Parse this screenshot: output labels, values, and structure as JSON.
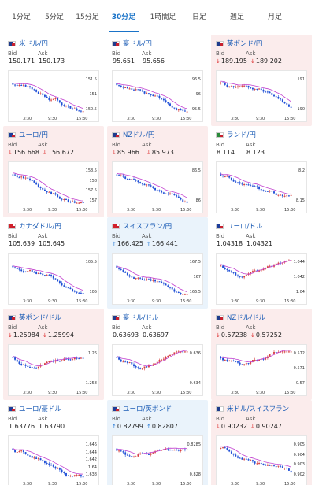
{
  "tabs": [
    {
      "label": "1分足"
    },
    {
      "label": "5分足"
    },
    {
      "label": "15分足"
    },
    {
      "label": "30分足",
      "active": true
    },
    {
      "label": "1時間足"
    },
    {
      "label": "日足"
    },
    {
      "label": "週足"
    },
    {
      "label": "月足"
    }
  ],
  "labels": {
    "bid": "Bid",
    "ask": "Ask"
  },
  "colors": {
    "down_bg": "#fbecec",
    "up_bg": "#eaf3fb",
    "link": "#1a5bb5",
    "bull": "#d64040",
    "bear": "#1f4fd6",
    "ma": "#c13fcf",
    "down_arrow": "#d33",
    "up_arrow": "#2a7bd8"
  },
  "cards": [
    {
      "pair": "米ドル/円",
      "flag": "us-jp-flag-icon",
      "state": "flat",
      "bid": "150.171",
      "ask": "150.173",
      "arrow": "",
      "yticks": [
        "151.5",
        "151",
        "150.5"
      ],
      "xticks": [
        "3:30",
        "9:30",
        "15:30"
      ],
      "trend": "down"
    },
    {
      "pair": "豪ドル/円",
      "flag": "au-jp-flag-icon",
      "state": "flat",
      "bid": "95.651",
      "ask": "95.656",
      "arrow": "",
      "yticks": [
        "96.5",
        "96",
        "95.5"
      ],
      "xticks": [
        "3:30",
        "9:30",
        "15:30"
      ],
      "trend": "down"
    },
    {
      "pair": "英ポンド/円",
      "flag": "gb-jp-flag-icon",
      "state": "down",
      "bid": "189.195",
      "ask": "189.202",
      "arrow": "↓",
      "yticks": [
        "191",
        "190"
      ],
      "xticks": [
        "3:30",
        "9:30",
        "15:30"
      ],
      "trend": "down"
    },
    {
      "pair": "ユーロ/円",
      "flag": "eu-jp-flag-icon",
      "state": "down",
      "bid": "156.668",
      "ask": "156.672",
      "arrow": "↓",
      "yticks": [
        "158.5",
        "158",
        "157.5",
        "157"
      ],
      "xticks": [
        "3:30",
        "9:30",
        "15:30"
      ],
      "trend": "down"
    },
    {
      "pair": "NZドル/円",
      "flag": "nz-jp-flag-icon",
      "state": "down",
      "bid": "85.966",
      "ask": "85.973",
      "arrow": "↓",
      "yticks": [
        "86.5",
        "86"
      ],
      "xticks": [
        "3:30",
        "9:30",
        "15:30"
      ],
      "trend": "down"
    },
    {
      "pair": "ランド/円",
      "flag": "za-jp-flag-icon",
      "state": "flat",
      "bid": "8.114",
      "ask": "8.123",
      "arrow": "",
      "yticks": [
        "8.2",
        "8.15"
      ],
      "xticks": [
        "3:30",
        "9:30",
        "15:30"
      ],
      "trend": "down"
    },
    {
      "pair": "カナダドル/円",
      "flag": "ca-jp-flag-icon",
      "state": "flat",
      "bid": "105.639",
      "ask": "105.645",
      "arrow": "",
      "yticks": [
        "105.5",
        "105"
      ],
      "xticks": [
        "3:30",
        "9:30",
        "15:30"
      ],
      "trend": "down"
    },
    {
      "pair": "スイスフラン/円",
      "flag": "ch-jp-flag-icon",
      "state": "up",
      "bid": "166.425",
      "ask": "166.441",
      "arrow": "↑",
      "yticks": [
        "167.5",
        "167",
        "166.5"
      ],
      "xticks": [
        "3:30",
        "9:30",
        "15:30"
      ],
      "trend": "down"
    },
    {
      "pair": "ユーロ/ドル",
      "flag": "eu-us-flag-icon",
      "state": "flat",
      "bid": "1.04318",
      "ask": "1.04321",
      "arrow": "",
      "yticks": [
        "1.044",
        "1.042",
        "1.04"
      ],
      "xticks": [
        "3:30",
        "9:30",
        "15:30"
      ],
      "trend": "mixed"
    },
    {
      "pair": "英ポンド/ドル",
      "flag": "gb-us-flag-icon",
      "state": "down",
      "bid": "1.25984",
      "ask": "1.25994",
      "arrow": "↓",
      "yticks": [
        "1.26",
        "1.258"
      ],
      "xticks": [
        "3:30",
        "9:30",
        "15:30"
      ],
      "trend": "mixed"
    },
    {
      "pair": "豪ドル/ドル",
      "flag": "au-us-flag-icon",
      "state": "flat",
      "bid": "0.63693",
      "ask": "0.63697",
      "arrow": "",
      "yticks": [
        "0.636",
        "0.634"
      ],
      "xticks": [
        "3:30",
        "9:30",
        "15:30"
      ],
      "trend": "up"
    },
    {
      "pair": "NZドル/ドル",
      "flag": "nz-us-flag-icon",
      "state": "down",
      "bid": "0.57238",
      "ask": "0.57252",
      "arrow": "↓",
      "yticks": [
        "0.572",
        "0.571",
        "0.57"
      ],
      "xticks": [
        "3:30",
        "9:30",
        "15:30"
      ],
      "trend": "up"
    },
    {
      "pair": "ユーロ/豪ドル",
      "flag": "eu-au-flag-icon",
      "state": "flat",
      "bid": "1.63776",
      "ask": "1.63790",
      "arrow": "",
      "yticks": [
        "1.646",
        "1.644",
        "1.642",
        "1.64",
        "1.638"
      ],
      "xticks": [
        "3:30",
        "9:30",
        "15:30"
      ],
      "trend": "down"
    },
    {
      "pair": "ユーロ/英ポンド",
      "flag": "eu-gb-flag-icon",
      "state": "up",
      "bid": "0.82799",
      "ask": "0.82807",
      "arrow": "↑",
      "yticks": [
        "0.8285",
        "0.828"
      ],
      "xticks": [
        "3:30",
        "9:30",
        "15:30"
      ],
      "trend": "mixed"
    },
    {
      "pair": "米ドル/スイスフラン",
      "flag": "us-ch-flag-icon",
      "state": "down",
      "bid": "0.90232",
      "ask": "0.90247",
      "arrow": "↓",
      "yticks": [
        "0.905",
        "0.904",
        "0.903",
        "0.902"
      ],
      "xticks": [
        "3:30",
        "9:30",
        "15:30"
      ],
      "trend": "down"
    }
  ]
}
